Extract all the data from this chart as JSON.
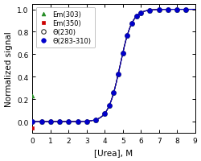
{
  "title": "",
  "xlabel": "[Urea], M",
  "ylabel": "Normalized signal",
  "xlim": [
    0,
    9
  ],
  "ylim": [
    -0.1,
    1.05
  ],
  "xticks": [
    0,
    1,
    2,
    3,
    4,
    5,
    6,
    7,
    8,
    9
  ],
  "yticks": [
    0.0,
    0.2,
    0.4,
    0.6,
    0.8,
    1.0
  ],
  "series": {
    "Em303": {
      "label": "Em(303)",
      "color": "#228B22",
      "marker": "^",
      "markersize": 3.5,
      "linestyle": "-",
      "linewidth": 0.8,
      "fillstyle": "full",
      "midpoint": 4.85,
      "slope": 3.0,
      "zorder": 3
    },
    "Em350": {
      "label": "Em(350)",
      "color": "#cc0000",
      "marker": "s",
      "markersize": 3.5,
      "linestyle": "-",
      "linewidth": 0.8,
      "fillstyle": "full",
      "midpoint": 4.85,
      "slope": 3.0,
      "zorder": 4
    },
    "CD230": {
      "label": "Θ(230)",
      "color": "#333333",
      "marker": "o",
      "markersize": 4.0,
      "linestyle": "-",
      "linewidth": 0.8,
      "fillstyle": "none",
      "midpoint": 4.85,
      "slope": 3.0,
      "zorder": 5
    },
    "CD283": {
      "label": "Θ(283-310)",
      "color": "#0000cc",
      "marker": "o",
      "markersize": 4.0,
      "linestyle": "-",
      "linewidth": 0.8,
      "fillstyle": "full",
      "midpoint": 4.85,
      "slope": 3.0,
      "zorder": 6
    }
  },
  "x_data": [
    0.0,
    0.5,
    1.0,
    1.5,
    2.0,
    2.5,
    3.0,
    3.5,
    4.0,
    4.25,
    4.5,
    4.75,
    5.0,
    5.25,
    5.5,
    5.75,
    6.0,
    6.5,
    7.0,
    7.5,
    8.0,
    8.5
  ],
  "em303_y_override": {
    "0.0": 0.23
  },
  "em350_y_override": {
    "0.0": -0.06
  },
  "background_color": "#ffffff",
  "legend_loc": "upper left",
  "legend_fontsize": 6.0,
  "axis_fontsize": 7.5,
  "tick_fontsize": 6.5
}
